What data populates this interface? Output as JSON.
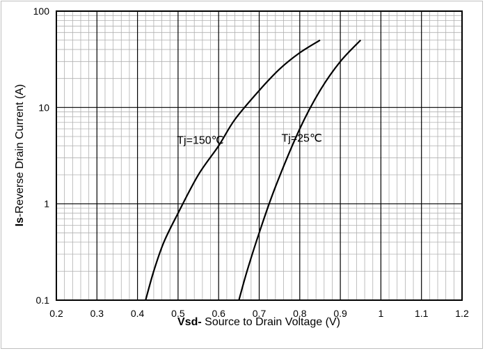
{
  "chart_data": {
    "type": "line",
    "xlabel_bold": "Vsd-",
    "xlabel_rest": " Source to Drain Voltage (V)",
    "ylabel_bold": "Is",
    "ylabel_rest": "-Reverse Drain Current (A)",
    "xlim": [
      0.2,
      1.2
    ],
    "ylim": [
      0.1,
      100
    ],
    "yscale": "log",
    "grid": true,
    "x_ticks": [
      "0.2",
      "0.3",
      "0.4",
      "0.5",
      "0.6",
      "0.7",
      "0.8",
      "0.9",
      "1",
      "1.1",
      "1.2"
    ],
    "y_ticks": [
      "0.1",
      "1",
      "10",
      "100"
    ],
    "series": [
      {
        "name": "Tj=150℃",
        "x": [
          0.42,
          0.44,
          0.465,
          0.5,
          0.55,
          0.6,
          0.64,
          0.7,
          0.75,
          0.8,
          0.85
        ],
        "y": [
          0.1,
          0.2,
          0.4,
          0.8,
          2,
          4,
          7.5,
          15,
          25,
          37,
          50
        ]
      },
      {
        "name": "Tj=25℃",
        "x": [
          0.65,
          0.67,
          0.7,
          0.74,
          0.8,
          0.85,
          0.9,
          0.95
        ],
        "y": [
          0.1,
          0.2,
          0.5,
          1.5,
          6,
          15,
          30,
          50
        ]
      }
    ],
    "annotations": [
      {
        "text": "Tj=150℃",
        "x": 0.555,
        "y": 4.2
      },
      {
        "text": "Tj=25℃",
        "x": 0.805,
        "y": 4.4
      }
    ]
  }
}
